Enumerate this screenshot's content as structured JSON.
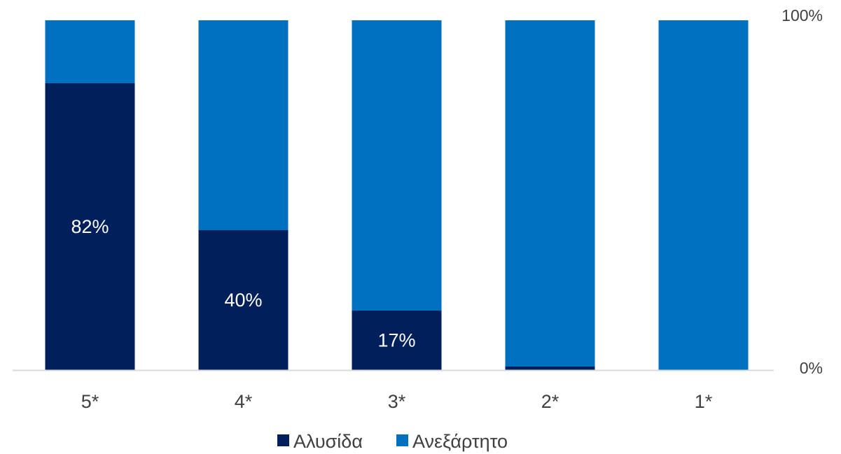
{
  "chart_data": {
    "type": "bar",
    "stacked": true,
    "categories": [
      "5*",
      "4*",
      "3*",
      "2*",
      "1*"
    ],
    "series": [
      {
        "name": "Αλυσίδα",
        "values": [
          82,
          40,
          17,
          1,
          0
        ],
        "color": "#001F5B",
        "labels": [
          "82%",
          "40%",
          "17%",
          "",
          ""
        ]
      },
      {
        "name": "Ανεξάρτητο",
        "values": [
          18,
          60,
          83,
          99,
          100
        ],
        "color": "#0070C0",
        "labels": [
          "",
          "",
          "",
          "",
          ""
        ]
      }
    ],
    "ylim": [
      0,
      100
    ],
    "y_tick_labels": [
      "0%",
      "100%"
    ],
    "y_axis_position": "right",
    "legend_position": "bottom",
    "grid": false
  }
}
